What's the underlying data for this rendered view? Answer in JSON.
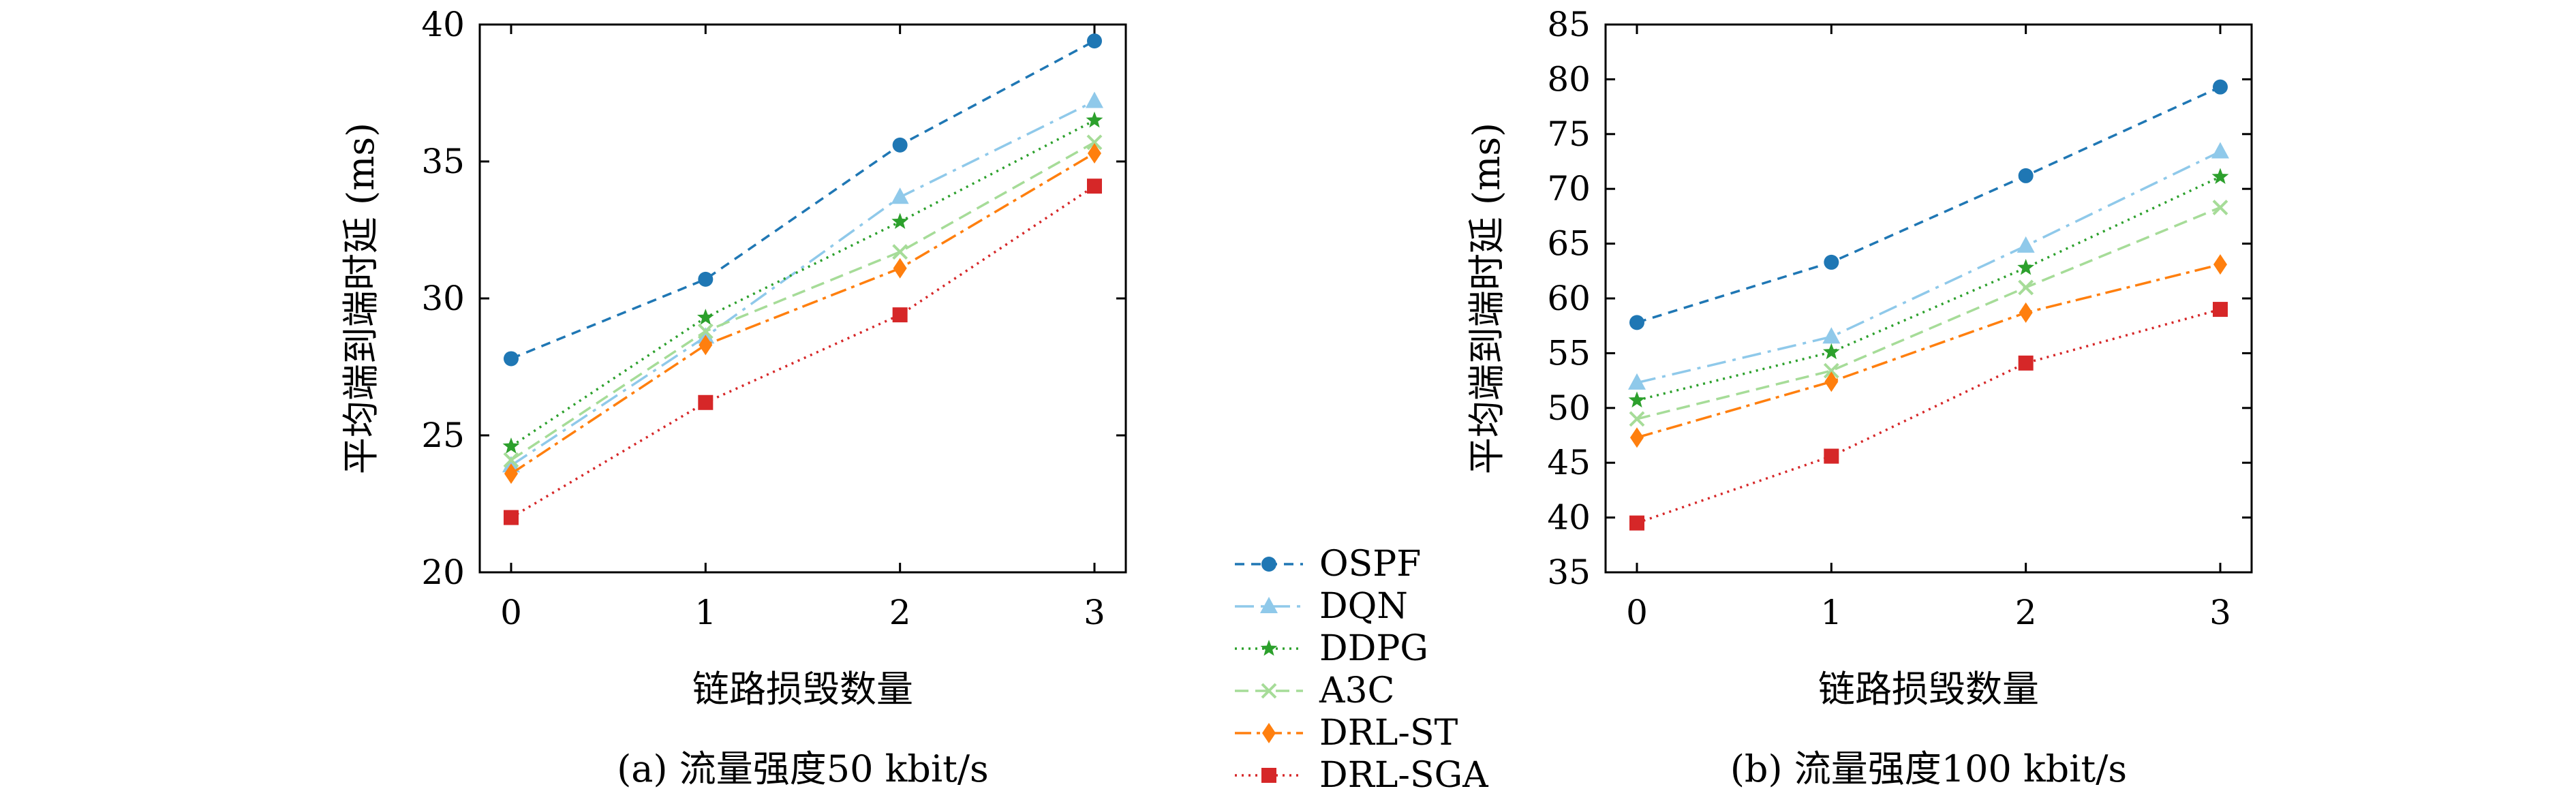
{
  "chart_data": [
    {
      "type": "line",
      "caption": "(a) 流量强度50 kbit/s",
      "xlabel": "链路损毁数量",
      "ylabel": "平均端到端时延 (ms)",
      "x": [
        0,
        1,
        2,
        3
      ],
      "xticks": [
        "0",
        "1",
        "2",
        "3"
      ],
      "yticks": [
        "20",
        "25",
        "30",
        "35",
        "40"
      ],
      "ylim": [
        20,
        40
      ],
      "grid": false,
      "series": [
        {
          "name": "OSPF",
          "values": [
            27.8,
            30.7,
            35.6,
            39.4
          ]
        },
        {
          "name": "DQN",
          "values": [
            23.9,
            28.6,
            33.7,
            37.2
          ]
        },
        {
          "name": "DDPG",
          "values": [
            24.6,
            29.3,
            32.8,
            36.5
          ]
        },
        {
          "name": "A3C",
          "values": [
            24.1,
            28.8,
            31.7,
            35.7
          ]
        },
        {
          "name": "DRL-ST",
          "values": [
            23.6,
            28.3,
            31.1,
            35.3
          ]
        },
        {
          "name": "DRL-SGA",
          "values": [
            22.0,
            26.2,
            29.4,
            34.1
          ]
        }
      ]
    },
    {
      "type": "line",
      "caption": "(b) 流量强度100 kbit/s",
      "xlabel": "链路损毁数量",
      "ylabel": "平均端到端时延 (ms)",
      "x": [
        0,
        1,
        2,
        3
      ],
      "xticks": [
        "0",
        "1",
        "2",
        "3"
      ],
      "yticks": [
        "35",
        "40",
        "45",
        "50",
        "55",
        "60",
        "65",
        "70",
        "75",
        "80",
        "85"
      ],
      "ylim": [
        35,
        85
      ],
      "grid": false,
      "series": [
        {
          "name": "OSPF",
          "values": [
            57.8,
            63.3,
            71.2,
            79.3
          ]
        },
        {
          "name": "DQN",
          "values": [
            52.3,
            56.5,
            64.8,
            73.4
          ]
        },
        {
          "name": "DDPG",
          "values": [
            50.7,
            55.1,
            62.8,
            71.1
          ]
        },
        {
          "name": "A3C",
          "values": [
            49.0,
            53.4,
            61.0,
            68.3
          ]
        },
        {
          "name": "DRL-ST",
          "values": [
            47.3,
            52.4,
            58.7,
            63.1
          ]
        },
        {
          "name": "DRL-SGA",
          "values": [
            39.5,
            45.6,
            54.1,
            59.0
          ]
        }
      ]
    }
  ],
  "legend": {
    "placement": "center-bottom",
    "entries": [
      "OSPF",
      "DQN",
      "DDPG",
      "A3C",
      "DRL-ST",
      "DRL-SGA"
    ]
  },
  "styles": {
    "OSPF": {
      "color": "#1f77b4",
      "marker": "circle",
      "dash": "14,10"
    },
    "DQN": {
      "color": "#8fc9ea",
      "marker": "triangle",
      "dash": "28,10,5,10"
    },
    "DDPG": {
      "color": "#2ca02c",
      "marker": "star",
      "dash": "3,7"
    },
    "A3C": {
      "color": "#a6dc98",
      "marker": "x",
      "dash": "20,10"
    },
    "DRL-ST": {
      "color": "#ff7f0e",
      "marker": "diamond",
      "dash": "24,8,5,8"
    },
    "DRL-SGA": {
      "color": "#d62728",
      "marker": "square",
      "dash": "3,7"
    }
  }
}
